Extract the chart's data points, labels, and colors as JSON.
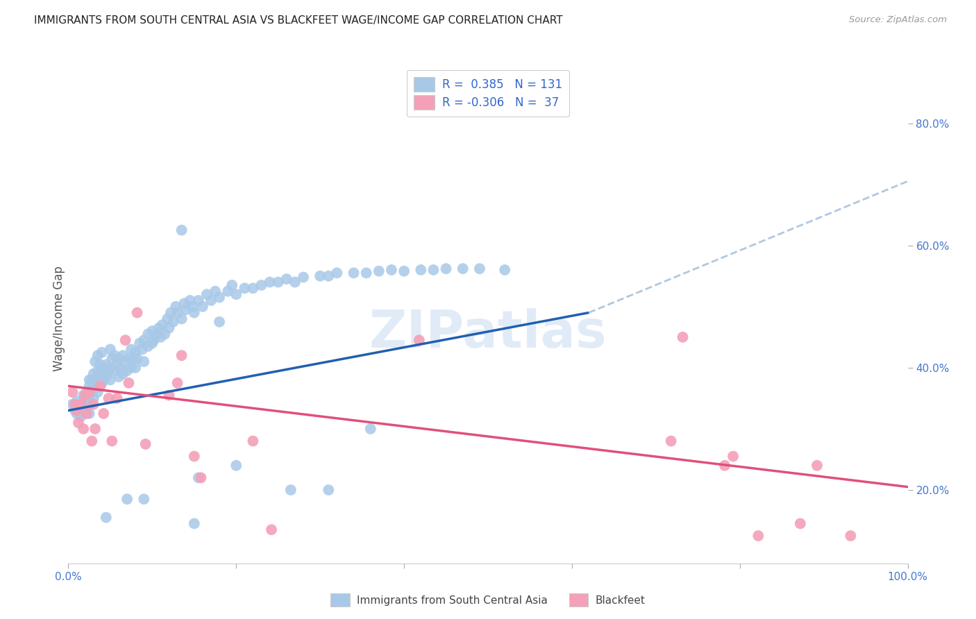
{
  "title": "IMMIGRANTS FROM SOUTH CENTRAL ASIA VS BLACKFEET WAGE/INCOME GAP CORRELATION CHART",
  "source": "Source: ZipAtlas.com",
  "ylabel": "Wage/Income Gap",
  "xlim": [
    0.0,
    1.0
  ],
  "ylim": [
    0.08,
    0.88
  ],
  "yticks": [
    0.2,
    0.4,
    0.6,
    0.8
  ],
  "ytick_labels": [
    "20.0%",
    "40.0%",
    "60.0%",
    "80.0%"
  ],
  "xticks": [
    0.0,
    0.2,
    0.4,
    0.6,
    0.8,
    1.0
  ],
  "xtick_labels": [
    "0.0%",
    "",
    "",
    "",
    "",
    "100.0%"
  ],
  "blue_R": 0.385,
  "blue_N": 131,
  "pink_R": -0.306,
  "pink_N": 37,
  "blue_color": "#a8c8e8",
  "pink_color": "#f4a0b8",
  "blue_line_color": "#2060b0",
  "pink_line_color": "#e0507a",
  "dashed_line_color": "#b0c8e0",
  "watermark": "ZIPatlas",
  "legend_label_blue": "Immigrants from South Central Asia",
  "legend_label_pink": "Blackfeet",
  "blue_scatter_x": [
    0.005,
    0.008,
    0.01,
    0.01,
    0.012,
    0.014,
    0.015,
    0.015,
    0.018,
    0.018,
    0.02,
    0.02,
    0.02,
    0.022,
    0.022,
    0.022,
    0.025,
    0.025,
    0.025,
    0.025,
    0.025,
    0.028,
    0.028,
    0.03,
    0.03,
    0.03,
    0.032,
    0.032,
    0.035,
    0.035,
    0.035,
    0.035,
    0.038,
    0.038,
    0.04,
    0.04,
    0.04,
    0.042,
    0.042,
    0.045,
    0.045,
    0.048,
    0.05,
    0.05,
    0.05,
    0.052,
    0.055,
    0.055,
    0.058,
    0.06,
    0.06,
    0.062,
    0.065,
    0.065,
    0.068,
    0.07,
    0.072,
    0.075,
    0.075,
    0.078,
    0.08,
    0.08,
    0.082,
    0.085,
    0.088,
    0.09,
    0.09,
    0.095,
    0.095,
    0.1,
    0.1,
    0.102,
    0.105,
    0.108,
    0.11,
    0.112,
    0.115,
    0.118,
    0.12,
    0.122,
    0.125,
    0.128,
    0.13,
    0.135,
    0.138,
    0.14,
    0.145,
    0.148,
    0.15,
    0.155,
    0.16,
    0.165,
    0.17,
    0.175,
    0.18,
    0.19,
    0.195,
    0.2,
    0.21,
    0.22,
    0.23,
    0.24,
    0.25,
    0.26,
    0.27,
    0.28,
    0.3,
    0.31,
    0.32,
    0.34,
    0.355,
    0.37,
    0.385,
    0.4,
    0.42,
    0.435,
    0.45,
    0.47,
    0.49,
    0.52,
    0.135,
    0.18,
    0.36,
    0.2,
    0.09,
    0.155,
    0.31,
    0.265,
    0.07,
    0.045,
    0.15
  ],
  "blue_scatter_y": [
    0.34,
    0.33,
    0.345,
    0.325,
    0.335,
    0.34,
    0.33,
    0.32,
    0.34,
    0.355,
    0.335,
    0.35,
    0.325,
    0.34,
    0.36,
    0.345,
    0.37,
    0.355,
    0.34,
    0.325,
    0.38,
    0.365,
    0.38,
    0.35,
    0.365,
    0.39,
    0.38,
    0.41,
    0.36,
    0.375,
    0.395,
    0.42,
    0.385,
    0.405,
    0.375,
    0.395,
    0.425,
    0.38,
    0.4,
    0.385,
    0.405,
    0.395,
    0.38,
    0.4,
    0.43,
    0.415,
    0.395,
    0.42,
    0.405,
    0.385,
    0.415,
    0.4,
    0.39,
    0.42,
    0.408,
    0.395,
    0.415,
    0.4,
    0.43,
    0.415,
    0.4,
    0.425,
    0.415,
    0.44,
    0.43,
    0.41,
    0.445,
    0.435,
    0.455,
    0.44,
    0.46,
    0.445,
    0.455,
    0.465,
    0.45,
    0.47,
    0.455,
    0.48,
    0.465,
    0.49,
    0.475,
    0.5,
    0.49,
    0.48,
    0.505,
    0.495,
    0.51,
    0.5,
    0.49,
    0.51,
    0.5,
    0.52,
    0.51,
    0.525,
    0.515,
    0.525,
    0.535,
    0.52,
    0.53,
    0.53,
    0.535,
    0.54,
    0.54,
    0.545,
    0.54,
    0.548,
    0.55,
    0.55,
    0.555,
    0.555,
    0.555,
    0.558,
    0.56,
    0.558,
    0.56,
    0.56,
    0.562,
    0.562,
    0.562,
    0.56,
    0.625,
    0.475,
    0.3,
    0.24,
    0.185,
    0.22,
    0.2,
    0.2,
    0.185,
    0.155,
    0.145
  ],
  "pink_scatter_x": [
    0.005,
    0.008,
    0.01,
    0.012,
    0.015,
    0.018,
    0.02,
    0.022,
    0.025,
    0.028,
    0.03,
    0.032,
    0.038,
    0.042,
    0.048,
    0.052,
    0.058,
    0.068,
    0.072,
    0.082,
    0.092,
    0.12,
    0.13,
    0.135,
    0.15,
    0.158,
    0.22,
    0.242,
    0.418,
    0.718,
    0.732,
    0.782,
    0.792,
    0.822,
    0.872,
    0.892,
    0.932
  ],
  "pink_scatter_y": [
    0.36,
    0.34,
    0.33,
    0.31,
    0.34,
    0.3,
    0.355,
    0.325,
    0.36,
    0.28,
    0.34,
    0.3,
    0.37,
    0.325,
    0.35,
    0.28,
    0.35,
    0.445,
    0.375,
    0.49,
    0.275,
    0.355,
    0.375,
    0.42,
    0.255,
    0.22,
    0.28,
    0.135,
    0.445,
    0.28,
    0.45,
    0.24,
    0.255,
    0.125,
    0.145,
    0.24,
    0.125
  ],
  "blue_line_x": [
    0.0,
    0.62
  ],
  "blue_line_y": [
    0.33,
    0.49
  ],
  "dashed_line_x": [
    0.62,
    1.0
  ],
  "dashed_line_y": [
    0.49,
    0.705
  ],
  "pink_line_x": [
    0.0,
    1.0
  ],
  "pink_line_y": [
    0.37,
    0.205
  ]
}
